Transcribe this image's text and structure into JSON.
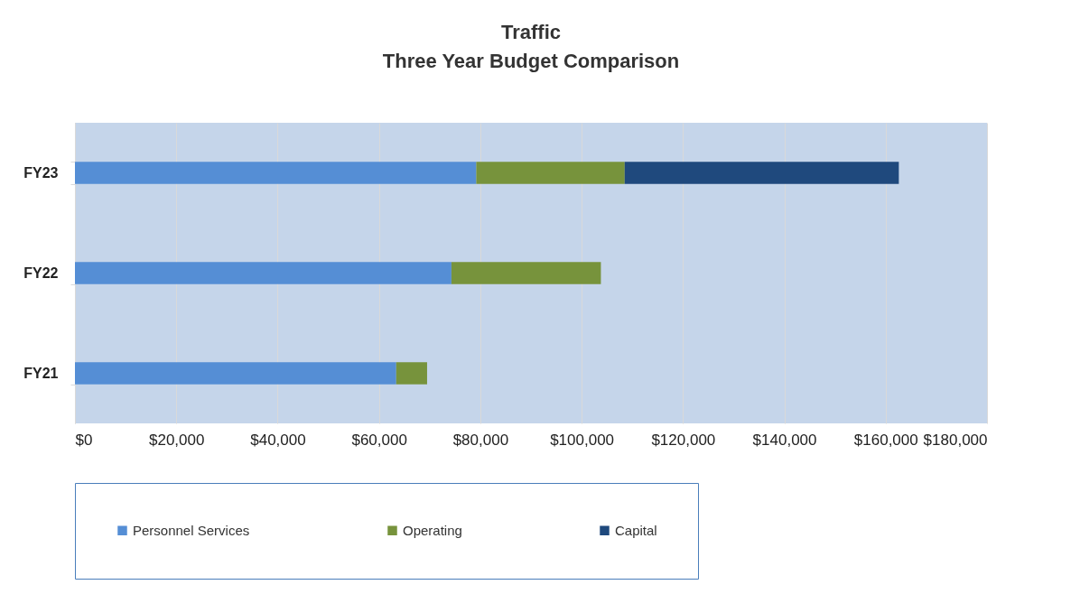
{
  "chart_data": {
    "type": "bar",
    "orientation": "horizontal",
    "stacked": true,
    "title": "Traffic",
    "subtitle": "Three Year Budget Comparison",
    "categories": [
      "FY23",
      "FY22",
      "FY21"
    ],
    "series": [
      {
        "name": "Personnel Services",
        "color": "#558ed5",
        "values": [
          79200,
          74300,
          63400
        ]
      },
      {
        "name": "Operating",
        "color": "#77933c",
        "values": [
          29300,
          29500,
          6100
        ]
      },
      {
        "name": "Capital",
        "color": "#1f497d",
        "values": [
          54100,
          null,
          null
        ]
      }
    ],
    "xlim": [
      0,
      180000
    ],
    "xticks": [
      {
        "value": 0,
        "label": "$0"
      },
      {
        "value": 20000,
        "label": "$20,000"
      },
      {
        "value": 40000,
        "label": "$40,000"
      },
      {
        "value": 60000,
        "label": "$60,000"
      },
      {
        "value": 80000,
        "label": "$80,000"
      },
      {
        "value": 100000,
        "label": "$100,000"
      },
      {
        "value": 120000,
        "label": "$120,000"
      },
      {
        "value": 140000,
        "label": "$140,000"
      },
      {
        "value": 160000,
        "label": "$160,000"
      },
      {
        "value": 180000,
        "label": "$180,000"
      }
    ],
    "grid": "x",
    "legend": "bottom"
  }
}
